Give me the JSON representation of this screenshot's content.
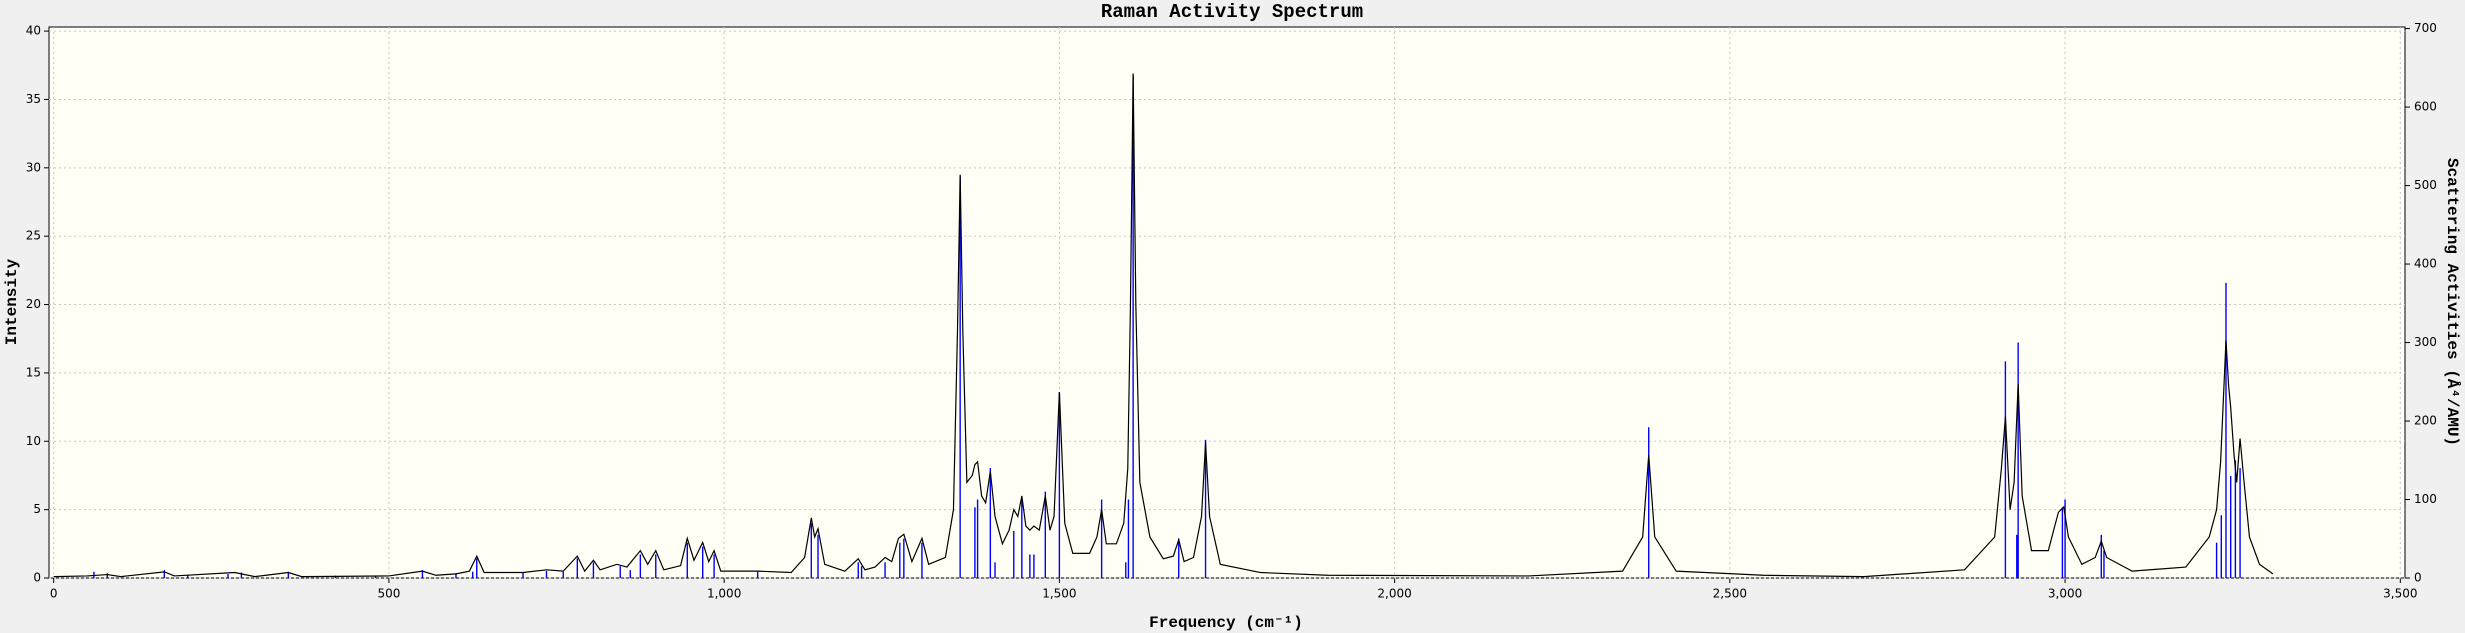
{
  "chart_data": {
    "type": "line",
    "title": "Raman Activity Spectrum",
    "x_label": "Frequency (cm⁻¹)",
    "y_label": "Intensity",
    "y2_label": "Scattering Activities (Å⁴/AMU)",
    "xlim": [
      -7,
      3507
    ],
    "ylim": [
      0,
      40.3
    ],
    "y2lim": [
      0,
      702
    ],
    "xticks": [
      0,
      500,
      {
        "value": 1000,
        "label": "1,000"
      },
      {
        "value": 1500,
        "label": "1,500"
      },
      {
        "value": 2000,
        "label": "2,000"
      },
      {
        "value": 2500,
        "label": "2,500"
      },
      {
        "value": 3000,
        "label": "3,000"
      },
      {
        "value": 3500,
        "label": "3,500"
      }
    ],
    "yticks": [
      0,
      5,
      10,
      15,
      20,
      25,
      30,
      35,
      40
    ],
    "y2ticks": [
      0,
      100,
      200,
      300,
      400,
      500,
      600,
      700
    ],
    "grid": true,
    "series": [
      {
        "type": "line",
        "color": "#000000",
        "x": [
          0,
          50,
          80,
          100,
          165,
          180,
          270,
          300,
          350,
          370,
          500,
          550,
          570,
          600,
          620,
          631,
          642,
          700,
          735,
          760,
          781,
          792,
          805,
          815,
          840,
          855,
          875,
          886,
          898,
          910,
          935,
          945,
          955,
          968,
          977,
          985,
          995,
          1050,
          1100,
          1120,
          1130,
          1135,
          1140,
          1150,
          1180,
          1200,
          1210,
          1225,
          1240,
          1250,
          1260,
          1268,
          1280,
          1295,
          1305,
          1330,
          1342,
          1348,
          1352,
          1356,
          1362,
          1370,
          1374,
          1378,
          1384,
          1390,
          1397,
          1404,
          1415,
          1425,
          1432,
          1438,
          1444,
          1450,
          1456,
          1462,
          1470,
          1479,
          1486,
          1492,
          1500,
          1508,
          1520,
          1545,
          1556,
          1563,
          1570,
          1585,
          1596,
          1602,
          1606,
          1610,
          1614,
          1620,
          1635,
          1655,
          1670,
          1678,
          1686,
          1700,
          1712,
          1718,
          1724,
          1740,
          1800,
          1900,
          2200,
          2340,
          2370,
          2379,
          2388,
          2420,
          2550,
          2700,
          2850,
          2895,
          2905,
          2911,
          2918,
          2924,
          2930,
          2936,
          2950,
          2975,
          2990,
          2998,
          3005,
          3025,
          3045,
          3054,
          3062,
          3100,
          3180,
          3215,
          3226,
          3232,
          3240,
          3244,
          3247,
          3252,
          3256,
          3261,
          3267,
          3275,
          3290,
          3310
        ],
        "values": [
          0.1,
          0.15,
          0.25,
          0.1,
          0.45,
          0.15,
          0.4,
          0.1,
          0.4,
          0.1,
          0.15,
          0.5,
          0.2,
          0.3,
          0.5,
          1.6,
          0.4,
          0.4,
          0.6,
          0.5,
          1.6,
          0.5,
          1.3,
          0.6,
          1.0,
          0.8,
          2.0,
          1.0,
          2.0,
          0.6,
          0.9,
          2.9,
          1.3,
          2.6,
          1.2,
          2.0,
          0.5,
          0.5,
          0.4,
          1.5,
          4.4,
          3.0,
          3.6,
          1.0,
          0.5,
          1.4,
          0.6,
          0.8,
          1.5,
          1.2,
          2.9,
          3.2,
          1.2,
          2.9,
          1.0,
          1.5,
          5.0,
          18,
          29.5,
          18,
          7,
          7.5,
          8.3,
          8.5,
          6,
          5.5,
          7.8,
          4.5,
          2.5,
          3.5,
          5.0,
          4.5,
          6.0,
          3.8,
          3.5,
          3.8,
          3.5,
          6.0,
          3.5,
          4.5,
          13.6,
          4.0,
          1.8,
          1.8,
          3,
          5.0,
          2.5,
          2.5,
          4,
          8,
          20,
          36.9,
          20,
          7,
          3,
          1.4,
          1.6,
          2.8,
          1.2,
          1.5,
          4.5,
          9.9,
          4.5,
          1,
          0.4,
          0.2,
          0.15,
          0.5,
          3,
          9.0,
          3,
          0.5,
          0.2,
          0.1,
          0.6,
          3,
          8,
          11.8,
          5,
          7,
          14.2,
          6,
          2,
          2,
          4.8,
          5.2,
          3,
          1,
          1.5,
          2.7,
          1.5,
          0.5,
          0.8,
          3,
          5.0,
          8.5,
          17.4,
          14,
          12.5,
          9,
          7,
          10.2,
          7,
          3,
          1,
          0.3
        ]
      },
      {
        "type": "stick",
        "color": "#0000ff",
        "axis": "y2",
        "x": [
          60,
          80,
          165,
          200,
          260,
          280,
          350,
          420,
          480,
          550,
          600,
          625,
          631,
          700,
          735,
          760,
          781,
          805,
          845,
          860,
          875,
          898,
          945,
          968,
          985,
          1050,
          1130,
          1140,
          1200,
          1205,
          1240,
          1262,
          1268,
          1295,
          1352,
          1374,
          1378,
          1397,
          1404,
          1432,
          1444,
          1456,
          1462,
          1479,
          1500,
          1563,
          1599,
          1603,
          1610,
          1678,
          1718,
          2379,
          2911,
          2928,
          2930,
          2996,
          3000,
          3054,
          3058,
          3226,
          3233,
          3240,
          3247,
          3254,
          3261
        ],
        "values": [
          8,
          6,
          10,
          4,
          5,
          7,
          8,
          3,
          3,
          10,
          6,
          8,
          25,
          7,
          9,
          8,
          25,
          20,
          15,
          10,
          30,
          30,
          45,
          40,
          30,
          8,
          70,
          55,
          20,
          15,
          20,
          45,
          50,
          45,
          512,
          90,
          100,
          140,
          20,
          60,
          100,
          30,
          30,
          110,
          236,
          100,
          20,
          100,
          640,
          50,
          176,
          192,
          276,
          55,
          300,
          90,
          100,
          55,
          35,
          45,
          80,
          376,
          130,
          150,
          140
        ]
      }
    ]
  }
}
